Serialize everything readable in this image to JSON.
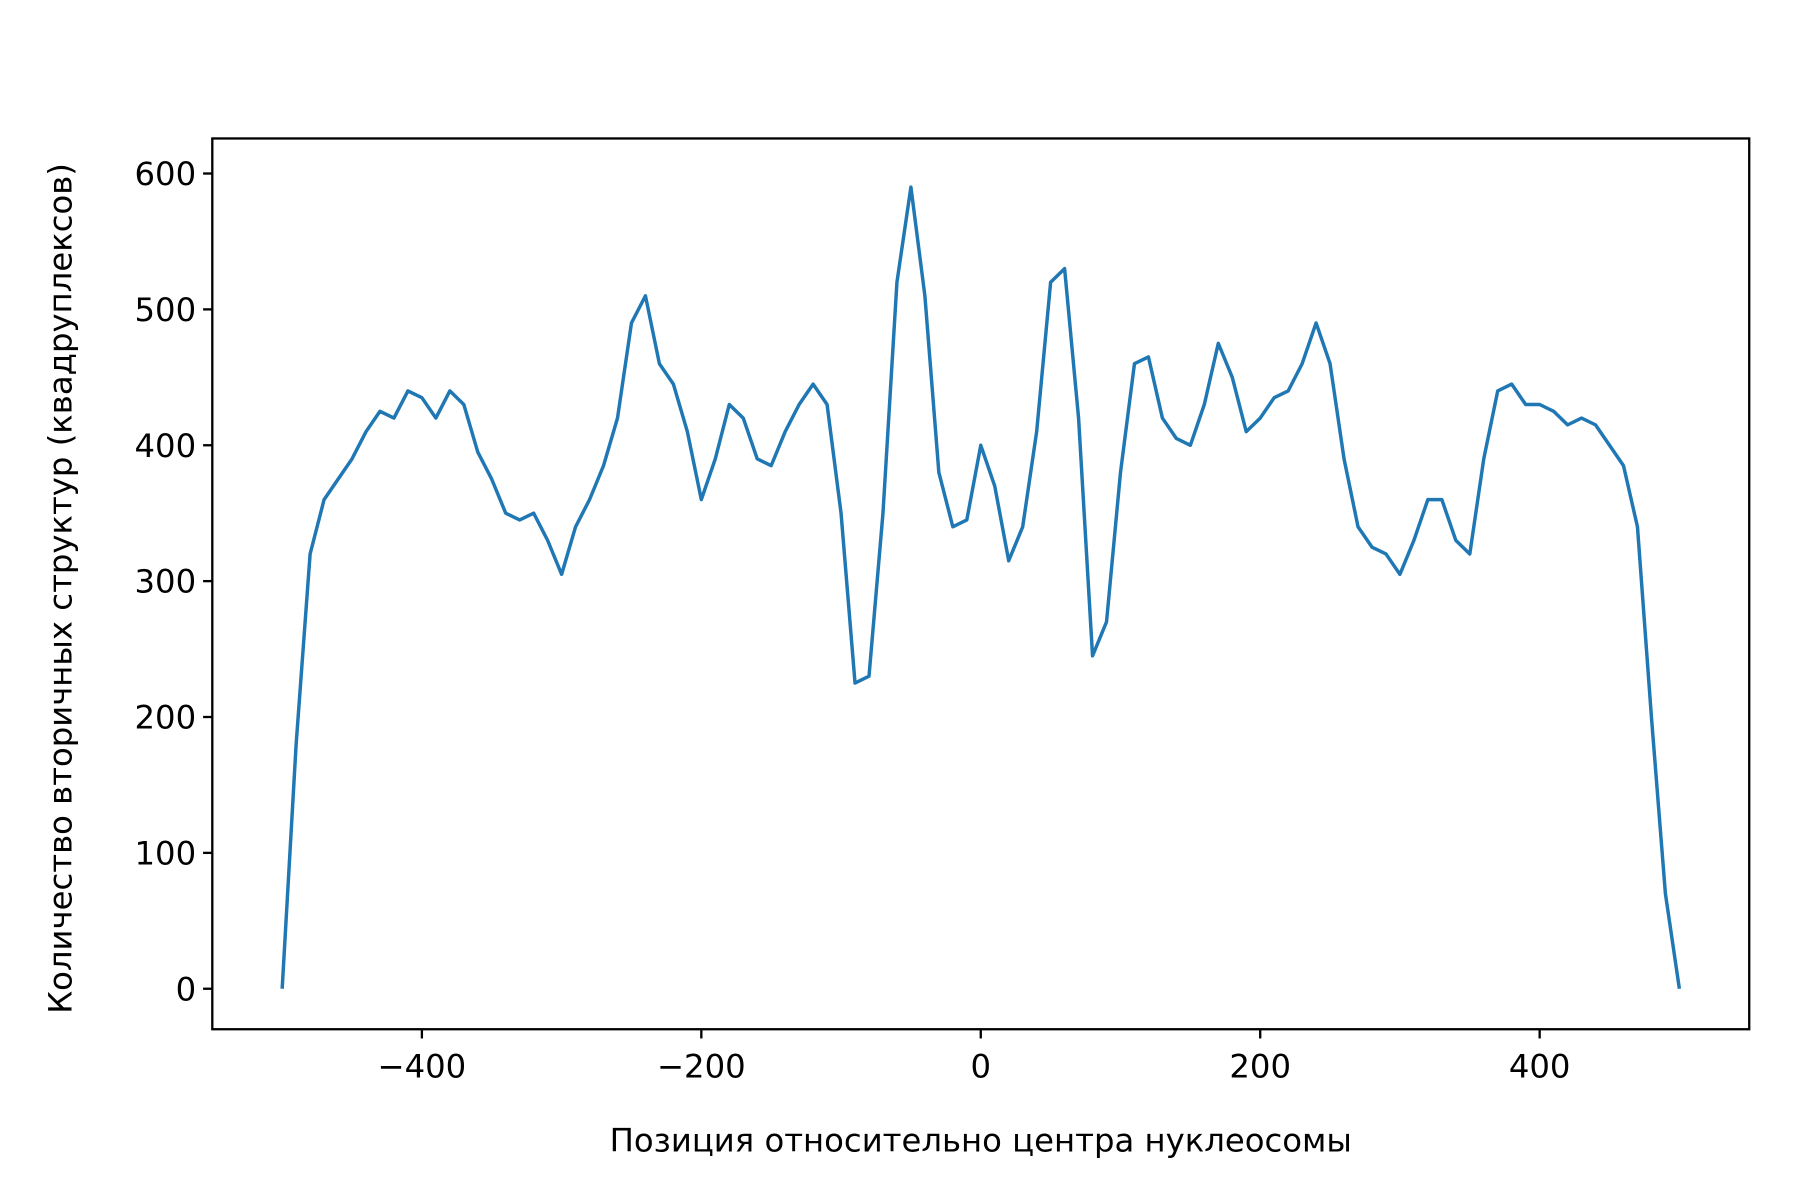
{
  "chart_data": {
    "type": "line",
    "xlabel": "Позиция относительно центра нуклеосомы",
    "ylabel": "Количество вторичных структур (квадруплексов)",
    "x": [
      -500,
      -490,
      -480,
      -470,
      -460,
      -450,
      -440,
      -430,
      -420,
      -410,
      -400,
      -390,
      -380,
      -370,
      -360,
      -350,
      -340,
      -330,
      -320,
      -310,
      -300,
      -290,
      -280,
      -270,
      -260,
      -250,
      -240,
      -230,
      -220,
      -210,
      -200,
      -190,
      -180,
      -170,
      -160,
      -150,
      -140,
      -130,
      -120,
      -110,
      -100,
      -90,
      -80,
      -70,
      -60,
      -50,
      -40,
      -30,
      -20,
      -10,
      0,
      10,
      20,
      30,
      40,
      50,
      60,
      70,
      80,
      90,
      100,
      110,
      120,
      130,
      140,
      150,
      160,
      170,
      180,
      190,
      200,
      210,
      220,
      230,
      240,
      250,
      260,
      270,
      280,
      290,
      300,
      310,
      320,
      330,
      340,
      350,
      360,
      370,
      380,
      390,
      400,
      410,
      420,
      430,
      440,
      450,
      460,
      470,
      480,
      490,
      500
    ],
    "series": [
      {
        "color": "#1f77b4",
        "values": [
          0,
          180,
          320,
          360,
          375,
          390,
          410,
          425,
          420,
          440,
          435,
          420,
          440,
          430,
          395,
          375,
          350,
          345,
          350,
          330,
          305,
          340,
          360,
          385,
          420,
          490,
          510,
          460,
          445,
          410,
          360,
          390,
          430,
          420,
          390,
          385,
          410,
          430,
          445,
          430,
          350,
          225,
          230,
          350,
          520,
          590,
          510,
          380,
          340,
          345,
          400,
          370,
          315,
          340,
          410,
          520,
          530,
          420,
          245,
          270,
          380,
          460,
          465,
          420,
          405,
          400,
          430,
          475,
          450,
          410,
          420,
          435,
          440,
          460,
          490,
          460,
          390,
          340,
          325,
          320,
          305,
          330,
          360,
          360,
          330,
          320,
          390,
          440,
          445,
          430,
          430,
          425,
          415,
          420,
          415,
          400,
          385,
          340,
          200,
          70,
          0
        ]
      }
    ],
    "xlim": [
      -550,
      550
    ],
    "ylim": [
      -29.8,
      625.8
    ],
    "xticks": [
      {
        "value": -400,
        "label": "−400"
      },
      {
        "value": -200,
        "label": "−200"
      },
      0,
      200,
      400
    ],
    "yticks": [
      0,
      100,
      200,
      300,
      400,
      500,
      600
    ]
  }
}
